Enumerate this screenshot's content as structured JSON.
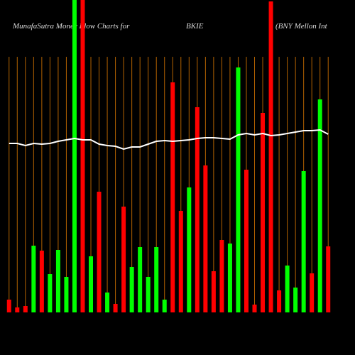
{
  "chart_data": {
    "type": "bar",
    "title": "MunafaSutra  Money Flow  Charts for",
    "symbol": "BKIE",
    "subtitle": "(BNY Mellon  Int",
    "categories": [
      null,
      null,
      null,
      null,
      null,
      null,
      null,
      null,
      null,
      null,
      null,
      null,
      null,
      null,
      null,
      null,
      null,
      null,
      null,
      null,
      null,
      null,
      null,
      null,
      null,
      null,
      null,
      null,
      null,
      null,
      null,
      null,
      null,
      null,
      null,
      null,
      null,
      null,
      null,
      null
    ],
    "values": [
      18,
      7,
      9,
      94,
      87,
      54,
      88,
      50,
      440,
      440,
      79,
      170,
      28,
      12,
      149,
      64,
      92,
      50,
      92,
      18,
      324,
      143,
      176,
      289,
      207,
      58,
      102,
      97,
      345,
      201,
      11,
      281,
      438,
      31,
      66,
      35,
      199,
      55,
      300,
      93
    ],
    "colors": [
      "#ff0000",
      "#ff0000",
      "#ff0000",
      "#00ff00",
      "#ff0000",
      "#00ff00",
      "#00ff00",
      "#00ff00",
      "#00ff00",
      "#ff0000",
      "#00ff00",
      "#ff0000",
      "#00ff00",
      "#ff0000",
      "#ff0000",
      "#00ff00",
      "#00ff00",
      "#00ff00",
      "#00ff00",
      "#00ff00",
      "#ff0000",
      "#ff0000",
      "#00ff00",
      "#ff0000",
      "#ff0000",
      "#ff0000",
      "#ff0000",
      "#00ff00",
      "#00ff00",
      "#ff0000",
      "#ff0000",
      "#ff0000",
      "#ff0000",
      "#ff0000",
      "#00ff00",
      "#00ff00",
      "#00ff00",
      "#ff0000",
      "#00ff00",
      "#ff0000"
    ],
    "line": {
      "color": "#ffffff",
      "values": [
        238,
        238,
        235,
        238,
        237,
        238,
        241,
        243,
        245,
        243,
        243,
        237,
        235,
        234,
        230,
        233,
        233,
        237,
        241,
        242,
        241,
        242,
        243,
        245,
        246,
        246,
        245,
        244,
        250,
        252,
        250,
        252,
        249,
        250,
        252,
        254,
        256,
        256,
        257,
        251
      ]
    },
    "grid_color": "#b36200",
    "ylim": [
      0,
      440
    ]
  }
}
